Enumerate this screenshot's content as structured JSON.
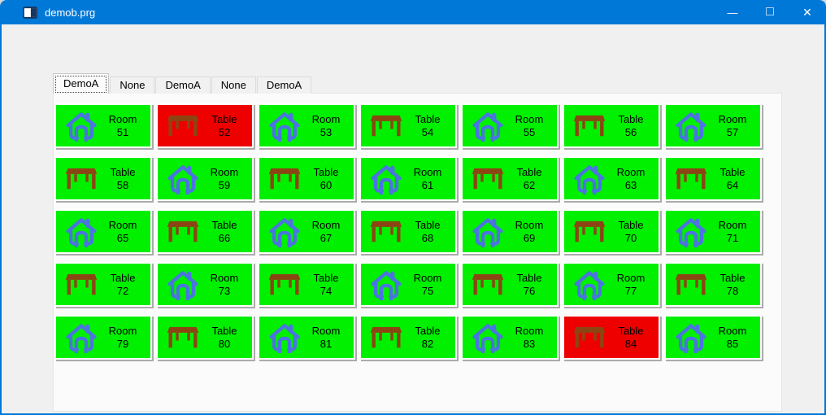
{
  "window": {
    "title": "demob.prg",
    "controls": {
      "minimize_glyph": "—",
      "maximize_glyph": "□",
      "close_glyph": "✕"
    }
  },
  "colors": {
    "titlebar": "#0078d7",
    "window_bg": "#f0f0f0",
    "panel_bg": "#fbfbfb",
    "available": "#00f000",
    "occupied": "#ee0000",
    "house_icon": "#4b74e0",
    "table_icon": "#8b4513",
    "tile_text": "#000000"
  },
  "tabs": [
    {
      "label": "DemoA",
      "selected": true
    },
    {
      "label": "None",
      "selected": false
    },
    {
      "label": "DemoA",
      "selected": false
    },
    {
      "label": "None",
      "selected": false
    },
    {
      "label": "DemoA",
      "selected": false
    }
  ],
  "tiles": [
    {
      "label": "Room",
      "number": "51",
      "icon": "house",
      "state": "available"
    },
    {
      "label": "Table",
      "number": "52",
      "icon": "table",
      "state": "occupied"
    },
    {
      "label": "Room",
      "number": "53",
      "icon": "house",
      "state": "available"
    },
    {
      "label": "Table",
      "number": "54",
      "icon": "table",
      "state": "available"
    },
    {
      "label": "Room",
      "number": "55",
      "icon": "house",
      "state": "available"
    },
    {
      "label": "Table",
      "number": "56",
      "icon": "table",
      "state": "available"
    },
    {
      "label": "Room",
      "number": "57",
      "icon": "house",
      "state": "available"
    },
    {
      "label": "Table",
      "number": "58",
      "icon": "table",
      "state": "available"
    },
    {
      "label": "Room",
      "number": "59",
      "icon": "house",
      "state": "available"
    },
    {
      "label": "Table",
      "number": "60",
      "icon": "table",
      "state": "available"
    },
    {
      "label": "Room",
      "number": "61",
      "icon": "house",
      "state": "available"
    },
    {
      "label": "Table",
      "number": "62",
      "icon": "table",
      "state": "available"
    },
    {
      "label": "Room",
      "number": "63",
      "icon": "house",
      "state": "available"
    },
    {
      "label": "Table",
      "number": "64",
      "icon": "table",
      "state": "available"
    },
    {
      "label": "Room",
      "number": "65",
      "icon": "house",
      "state": "available"
    },
    {
      "label": "Table",
      "number": "66",
      "icon": "table",
      "state": "available"
    },
    {
      "label": "Room",
      "number": "67",
      "icon": "house",
      "state": "available"
    },
    {
      "label": "Table",
      "number": "68",
      "icon": "table",
      "state": "available"
    },
    {
      "label": "Room",
      "number": "69",
      "icon": "house",
      "state": "available"
    },
    {
      "label": "Table",
      "number": "70",
      "icon": "table",
      "state": "available"
    },
    {
      "label": "Room",
      "number": "71",
      "icon": "house",
      "state": "available"
    },
    {
      "label": "Table",
      "number": "72",
      "icon": "table",
      "state": "available"
    },
    {
      "label": "Room",
      "number": "73",
      "icon": "house",
      "state": "available"
    },
    {
      "label": "Table",
      "number": "74",
      "icon": "table",
      "state": "available"
    },
    {
      "label": "Room",
      "number": "75",
      "icon": "house",
      "state": "available"
    },
    {
      "label": "Table",
      "number": "76",
      "icon": "table",
      "state": "available"
    },
    {
      "label": "Room",
      "number": "77",
      "icon": "house",
      "state": "available"
    },
    {
      "label": "Table",
      "number": "78",
      "icon": "table",
      "state": "available"
    },
    {
      "label": "Room",
      "number": "79",
      "icon": "house",
      "state": "available"
    },
    {
      "label": "Table",
      "number": "80",
      "icon": "table",
      "state": "available"
    },
    {
      "label": "Room",
      "number": "81",
      "icon": "house",
      "state": "available"
    },
    {
      "label": "Table",
      "number": "82",
      "icon": "table",
      "state": "available"
    },
    {
      "label": "Room",
      "number": "83",
      "icon": "house",
      "state": "available"
    },
    {
      "label": "Table",
      "number": "84",
      "icon": "table",
      "state": "occupied"
    },
    {
      "label": "Room",
      "number": "85",
      "icon": "house",
      "state": "available"
    }
  ]
}
